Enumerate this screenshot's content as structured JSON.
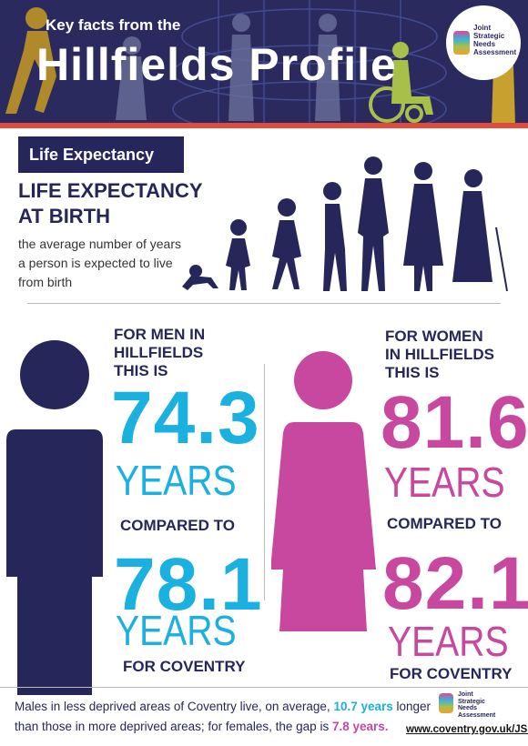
{
  "header": {
    "kicker": "Key facts from the",
    "title": "Hillfields Profile",
    "logo": [
      "Joint",
      "Strategic",
      "Needs",
      "Assessment"
    ]
  },
  "section": {
    "tab": "Life Expectancy",
    "heading": [
      "LIFE EXPECTANCY",
      "AT BIRTH"
    ],
    "description": [
      "the average number of years",
      "a person is expected to live",
      "from birth"
    ]
  },
  "men": {
    "intro": [
      "FOR MEN IN",
      "HILLFIELDS",
      "THIS IS"
    ],
    "value": "74.3",
    "unit": "YEARS",
    "compared": "COMPARED TO",
    "coventry_value": "78.1",
    "coventry_unit": "YEARS",
    "coventry_label": "FOR COVENTRY"
  },
  "women": {
    "intro": [
      "FOR WOMEN",
      "IN HILLFIELDS",
      "THIS IS"
    ],
    "value": "81.6",
    "unit": "YEARS",
    "compared": "COMPARED TO",
    "coventry_value": "82.1",
    "coventry_unit": "YEARS",
    "coventry_label": "FOR COVENTRY"
  },
  "footer": {
    "note": [
      "Males in less deprived areas of Coventry live, on average, ",
      "10.7 years",
      " longer",
      "than those in more deprived areas; for females, the gap is ",
      "7.8 years",
      "."
    ],
    "logo": [
      "Joint",
      "Strategic",
      "Needs",
      "Assessment"
    ],
    "url": "www.coventry.gov.uk/JSNA"
  }
}
